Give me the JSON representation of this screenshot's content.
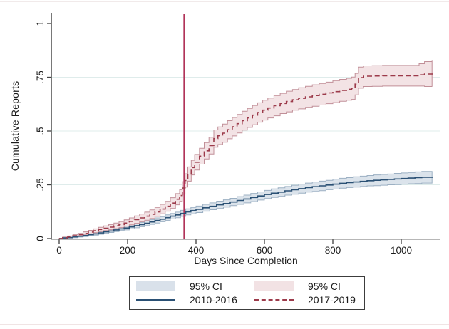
{
  "chart_data": {
    "type": "line",
    "title": "",
    "xlabel": "Days Since Completion",
    "ylabel": "Cumulative Reports",
    "xlim": [
      0,
      1115
    ],
    "ylim": [
      0,
      1.04
    ],
    "grid": "horizontal",
    "legend_position": "below",
    "xticks": [
      {
        "v": 0,
        "label": "0"
      },
      {
        "v": 200,
        "label": "200"
      },
      {
        "v": 400,
        "label": "400"
      },
      {
        "v": 600,
        "label": "600"
      },
      {
        "v": 800,
        "label": "800"
      },
      {
        "v": 1000,
        "label": "1000"
      }
    ],
    "yticks": [
      {
        "v": 0,
        "label": "0"
      },
      {
        "v": 0.25,
        "label": ".25"
      },
      {
        "v": 0.5,
        "label": ".5"
      },
      {
        "v": 0.75,
        "label": ".75"
      },
      {
        "v": 1,
        "label": "1"
      }
    ],
    "y_gridlines": [
      0.25,
      0.5,
      0.75
    ],
    "colors": {
      "axis": "#3f3f3f",
      "grid": "#dfeceb",
      "tick_text": "#1c1c1c",
      "reference_line": "#b13459"
    },
    "reference_line": {
      "axis": "x",
      "value": 365
    },
    "series": [
      {
        "name": "2010-2016",
        "line": "solid",
        "color": "#2a5074",
        "band_fill": "#d9e1ea",
        "band_edge": "#9cb0c3",
        "ci_label": "95% CI",
        "points": [
          [
            0,
            0,
            0.001
          ],
          [
            10,
            0.003,
            0.002
          ],
          [
            25,
            0.005,
            0.003
          ],
          [
            40,
            0.008,
            0.004
          ],
          [
            55,
            0.011,
            0.004
          ],
          [
            70,
            0.014,
            0.005
          ],
          [
            85,
            0.018,
            0.005
          ],
          [
            100,
            0.022,
            0.006
          ],
          [
            115,
            0.026,
            0.006
          ],
          [
            130,
            0.031,
            0.007
          ],
          [
            145,
            0.035,
            0.007
          ],
          [
            160,
            0.04,
            0.008
          ],
          [
            175,
            0.045,
            0.008
          ],
          [
            190,
            0.049,
            0.009
          ],
          [
            205,
            0.054,
            0.009
          ],
          [
            220,
            0.06,
            0.01
          ],
          [
            235,
            0.065,
            0.01
          ],
          [
            250,
            0.071,
            0.011
          ],
          [
            265,
            0.077,
            0.011
          ],
          [
            280,
            0.084,
            0.012
          ],
          [
            295,
            0.09,
            0.012
          ],
          [
            310,
            0.097,
            0.013
          ],
          [
            325,
            0.104,
            0.013
          ],
          [
            340,
            0.11,
            0.013
          ],
          [
            355,
            0.117,
            0.014
          ],
          [
            370,
            0.124,
            0.014
          ],
          [
            385,
            0.13,
            0.015
          ],
          [
            400,
            0.136,
            0.015
          ],
          [
            420,
            0.143,
            0.016
          ],
          [
            440,
            0.15,
            0.016
          ],
          [
            460,
            0.157,
            0.017
          ],
          [
            480,
            0.163,
            0.017
          ],
          [
            500,
            0.17,
            0.017
          ],
          [
            520,
            0.177,
            0.018
          ],
          [
            540,
            0.184,
            0.018
          ],
          [
            560,
            0.191,
            0.019
          ],
          [
            580,
            0.198,
            0.019
          ],
          [
            600,
            0.205,
            0.019
          ],
          [
            620,
            0.211,
            0.02
          ],
          [
            640,
            0.216,
            0.02
          ],
          [
            660,
            0.222,
            0.02
          ],
          [
            680,
            0.227,
            0.021
          ],
          [
            700,
            0.232,
            0.021
          ],
          [
            720,
            0.237,
            0.021
          ],
          [
            740,
            0.241,
            0.022
          ],
          [
            760,
            0.245,
            0.022
          ],
          [
            780,
            0.249,
            0.022
          ],
          [
            800,
            0.253,
            0.023
          ],
          [
            820,
            0.257,
            0.023
          ],
          [
            840,
            0.26,
            0.023
          ],
          [
            860,
            0.263,
            0.024
          ],
          [
            880,
            0.266,
            0.024
          ],
          [
            900,
            0.269,
            0.024
          ],
          [
            920,
            0.271,
            0.025
          ],
          [
            940,
            0.273,
            0.025
          ],
          [
            960,
            0.275,
            0.025
          ],
          [
            980,
            0.277,
            0.026
          ],
          [
            1000,
            0.279,
            0.026
          ],
          [
            1020,
            0.281,
            0.026
          ],
          [
            1040,
            0.283,
            0.027
          ],
          [
            1060,
            0.285,
            0.027
          ],
          [
            1090,
            0.287,
            0.027
          ]
        ]
      },
      {
        "name": "2017-2019",
        "line": "dashed",
        "color": "#9c3a4a",
        "band_fill": "#f2e2e4",
        "band_edge": "#c18f98",
        "ci_label": "95% CI",
        "points": [
          [
            0,
            0,
            0.001
          ],
          [
            10,
            0.004,
            0.003
          ],
          [
            25,
            0.008,
            0.004
          ],
          [
            40,
            0.013,
            0.005
          ],
          [
            55,
            0.018,
            0.006
          ],
          [
            70,
            0.024,
            0.007
          ],
          [
            85,
            0.03,
            0.008
          ],
          [
            100,
            0.036,
            0.009
          ],
          [
            115,
            0.042,
            0.01
          ],
          [
            130,
            0.048,
            0.011
          ],
          [
            145,
            0.053,
            0.012
          ],
          [
            160,
            0.059,
            0.013
          ],
          [
            175,
            0.065,
            0.014
          ],
          [
            190,
            0.072,
            0.015
          ],
          [
            205,
            0.08,
            0.016
          ],
          [
            220,
            0.088,
            0.017
          ],
          [
            235,
            0.096,
            0.018
          ],
          [
            250,
            0.104,
            0.019
          ],
          [
            265,
            0.113,
            0.02
          ],
          [
            280,
            0.124,
            0.021
          ],
          [
            295,
            0.137,
            0.022
          ],
          [
            310,
            0.15,
            0.023
          ],
          [
            325,
            0.165,
            0.025
          ],
          [
            340,
            0.183,
            0.026
          ],
          [
            352,
            0.2,
            0.027
          ],
          [
            360,
            0.235,
            0.029
          ],
          [
            368,
            0.27,
            0.031
          ],
          [
            376,
            0.3,
            0.033
          ],
          [
            386,
            0.33,
            0.034
          ],
          [
            396,
            0.355,
            0.036
          ],
          [
            410,
            0.383,
            0.037
          ],
          [
            424,
            0.408,
            0.038
          ],
          [
            438,
            0.432,
            0.039
          ],
          [
            452,
            0.465,
            0.04
          ],
          [
            464,
            0.478,
            0.041
          ],
          [
            478,
            0.49,
            0.042
          ],
          [
            492,
            0.506,
            0.042
          ],
          [
            506,
            0.52,
            0.043
          ],
          [
            520,
            0.534,
            0.043
          ],
          [
            535,
            0.548,
            0.044
          ],
          [
            550,
            0.561,
            0.044
          ],
          [
            565,
            0.574,
            0.045
          ],
          [
            580,
            0.586,
            0.045
          ],
          [
            595,
            0.597,
            0.046
          ],
          [
            610,
            0.607,
            0.046
          ],
          [
            628,
            0.618,
            0.047
          ],
          [
            646,
            0.628,
            0.047
          ],
          [
            664,
            0.637,
            0.048
          ],
          [
            682,
            0.645,
            0.048
          ],
          [
            700,
            0.652,
            0.049
          ],
          [
            720,
            0.659,
            0.049
          ],
          [
            740,
            0.665,
            0.05
          ],
          [
            760,
            0.671,
            0.05
          ],
          [
            780,
            0.677,
            0.05
          ],
          [
            800,
            0.683,
            0.051
          ],
          [
            820,
            0.689,
            0.051
          ],
          [
            840,
            0.694,
            0.051
          ],
          [
            855,
            0.699,
            0.052
          ],
          [
            865,
            0.718,
            0.05
          ],
          [
            875,
            0.748,
            0.049
          ],
          [
            890,
            0.755,
            0.048
          ],
          [
            915,
            0.756,
            0.048
          ],
          [
            945,
            0.757,
            0.048
          ],
          [
            975,
            0.757,
            0.048
          ],
          [
            1005,
            0.757,
            0.048
          ],
          [
            1035,
            0.757,
            0.048
          ],
          [
            1052,
            0.761,
            0.052
          ],
          [
            1068,
            0.765,
            0.058
          ],
          [
            1090,
            0.768,
            0.062
          ]
        ]
      }
    ]
  },
  "legend": {
    "entries": [
      {
        "label": "95% CI"
      },
      {
        "label": "95% CI"
      },
      {
        "label": "2010-2016"
      },
      {
        "label": "2017-2019"
      }
    ]
  }
}
